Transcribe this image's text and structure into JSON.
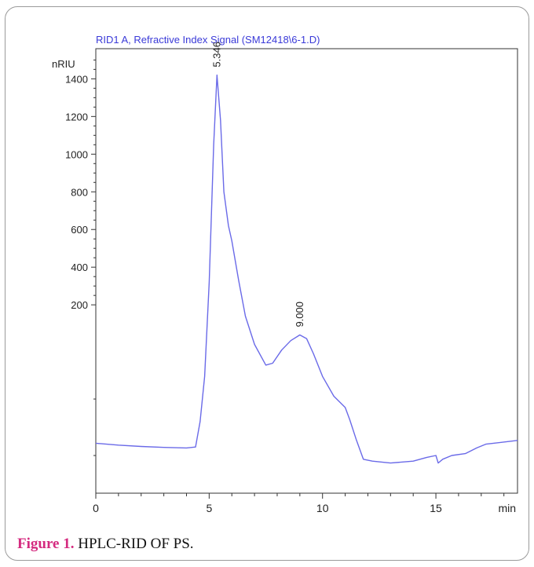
{
  "chart_data": {
    "type": "line",
    "title": "RID1 A, Refractive Index Signal (SM12418\\6-1.D)",
    "ylabel": "nRIU",
    "xlabel": "min",
    "x_ticks": [
      "0",
      "5",
      "10",
      "15"
    ],
    "y_ticks": [
      "200",
      "400",
      "600",
      "800",
      "1000",
      "1200",
      "1400"
    ],
    "xlim": [
      0,
      18.6
    ],
    "ylim": [
      -800,
      1560
    ],
    "grid": false,
    "line_color": "#6a6ae8",
    "series": [
      {
        "x": [
          0,
          1,
          2,
          3,
          4,
          4.4,
          4.6,
          4.8,
          5.0,
          5.2,
          5.346,
          5.5,
          5.65,
          5.85,
          6.0,
          6.3,
          6.6,
          7.0,
          7.5,
          7.8,
          8.2,
          8.6,
          9.0,
          9.3,
          9.6,
          10.0,
          10.5,
          11.0,
          11.2,
          11.5,
          11.8,
          12.2,
          13,
          14,
          14.6,
          15.0,
          15.1,
          15.3,
          15.7,
          16.3,
          16.8,
          17.2,
          18.6
        ],
        "y": [
          -535,
          -545,
          -552,
          -557,
          -560,
          -555,
          -420,
          -180,
          320,
          1050,
          1420,
          1180,
          800,
          620,
          540,
          330,
          140,
          -10,
          -120,
          -110,
          -40,
          10,
          40,
          20,
          -60,
          -180,
          -285,
          -345,
          -410,
          -520,
          -620,
          -630,
          -640,
          -630,
          -610,
          -600,
          -640,
          -620,
          -600,
          -590,
          -560,
          -540,
          -520
        ]
      }
    ],
    "peak_labels": [
      {
        "label": "5.346",
        "x": 5.346,
        "y": 1420
      },
      {
        "label": "9.000",
        "x": 9.0,
        "y": 40
      }
    ]
  },
  "caption": {
    "label": "Figure 1.",
    "text": "HPLC-RID OF PS."
  }
}
